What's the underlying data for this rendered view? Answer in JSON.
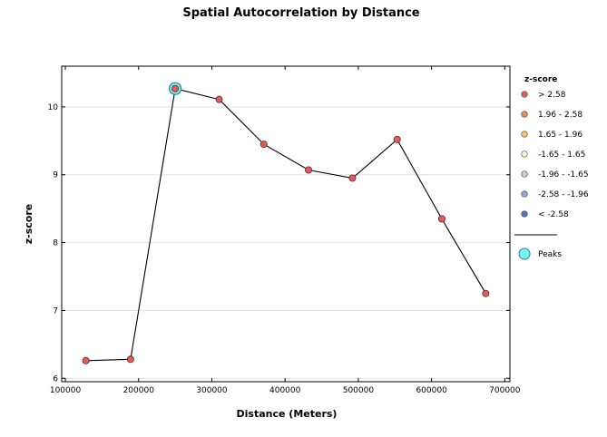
{
  "chart_data": {
    "type": "line",
    "title": "Spatial Autocorrelation by Distance",
    "xlabel": "Distance (Meters)",
    "ylabel": "z-score",
    "xlim": [
      95000,
      707000
    ],
    "ylim": [
      5.95,
      10.6
    ],
    "x_ticks": [
      {
        "value": 100000,
        "label": "100000"
      },
      {
        "value": 200000,
        "label": "200000"
      },
      {
        "value": 300000,
        "label": "300000"
      },
      {
        "value": 400000,
        "label": "400000"
      },
      {
        "value": 500000,
        "label": "500000"
      },
      {
        "value": 600000,
        "label": "600000"
      },
      {
        "value": 700000,
        "label": "700000"
      }
    ],
    "y_ticks": [
      {
        "value": 6,
        "label": "6"
      },
      {
        "value": 7,
        "label": "7"
      },
      {
        "value": 8,
        "label": "8"
      },
      {
        "value": 9,
        "label": "9"
      },
      {
        "value": 10,
        "label": "10"
      }
    ],
    "grid": "horizontal",
    "x": [
      128000,
      189000,
      250000,
      310000,
      371000,
      432000,
      492000,
      553000,
      614000,
      674000
    ],
    "y": [
      6.26,
      6.28,
      10.27,
      10.11,
      9.45,
      9.07,
      8.95,
      9.52,
      8.35,
      7.25
    ],
    "peaks": [
      2
    ],
    "line_color": "#000000",
    "point_color": "#e05c5c",
    "peak_color": "#7ff0f0",
    "legend": {
      "position": "right",
      "title": "z-score",
      "items": [
        {
          "label": "> 2.58",
          "color": "#e05c5c"
        },
        {
          "label": "1.96 - 2.58",
          "color": "#ef8a62"
        },
        {
          "label": "1.65 - 1.96",
          "color": "#fdbf6f"
        },
        {
          "label": "-1.65 - 1.65",
          "color": "#fbf8cf"
        },
        {
          "label": "-1.96 - -1.65",
          "color": "#cacbd8"
        },
        {
          "label": "-2.58 - -1.96",
          "color": "#8fa9d4"
        },
        {
          "label": "< -2.58",
          "color": "#4f76c2"
        }
      ],
      "peak_label": "Peaks"
    }
  }
}
